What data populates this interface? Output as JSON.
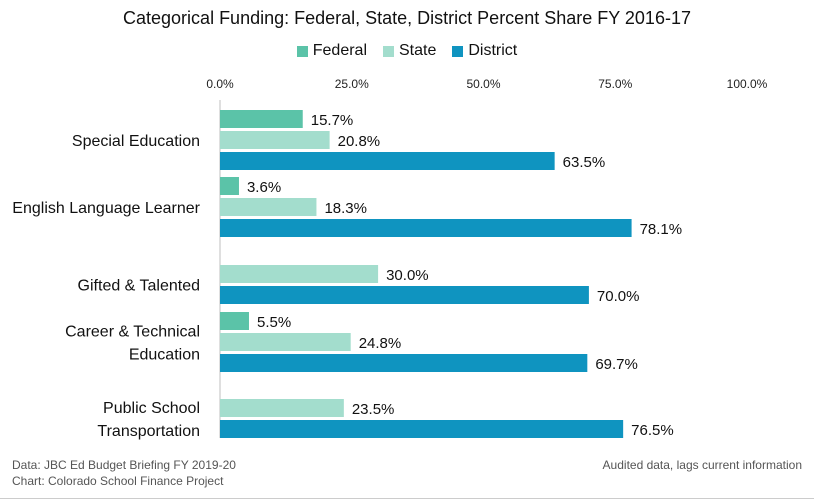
{
  "chart_data": {
    "type": "bar",
    "orientation": "horizontal",
    "title": "Categorical Funding: Federal, State, District Percent Share FY 2016-17",
    "categories": [
      [
        "Special Education"
      ],
      [
        "English Language Learner"
      ],
      [
        "Gifted & Talented"
      ],
      [
        "Career & Technical",
        "Education"
      ],
      [
        "Public School",
        "Transportation"
      ]
    ],
    "series": [
      {
        "name": "Federal",
        "color": "#5bc3a8",
        "values": [
          15.7,
          3.6,
          null,
          5.5,
          null
        ],
        "labels": [
          "15.7%",
          "3.6%",
          null,
          "5.5%",
          null
        ]
      },
      {
        "name": "State",
        "color": "#a3ddcd",
        "values": [
          20.8,
          18.3,
          30.0,
          24.8,
          23.5
        ],
        "labels": [
          "20.8%",
          "18.3%",
          "30.0%",
          "24.8%",
          "23.5%"
        ]
      },
      {
        "name": "District",
        "color": "#0f94c0",
        "values": [
          63.5,
          78.1,
          70.0,
          69.7,
          76.5
        ],
        "labels": [
          "63.5%",
          "78.1%",
          "70.0%",
          "69.7%",
          "76.5%"
        ]
      }
    ],
    "xlim": [
      0,
      100
    ],
    "xticks": [
      0,
      25,
      50,
      75,
      100
    ],
    "xtick_labels": [
      "0.0%",
      "25.0%",
      "50.0%",
      "75.0%",
      "100.0%"
    ],
    "xaxis_position": "top",
    "legend_position": "top",
    "grid": false,
    "xlabel": "",
    "ylabel": ""
  },
  "footer": {
    "source": "Data: JBC Ed Budget Briefing FY 2019-20",
    "chart_credit": "Chart: Colorado School Finance Project",
    "note": "Audited data, lags current information"
  }
}
